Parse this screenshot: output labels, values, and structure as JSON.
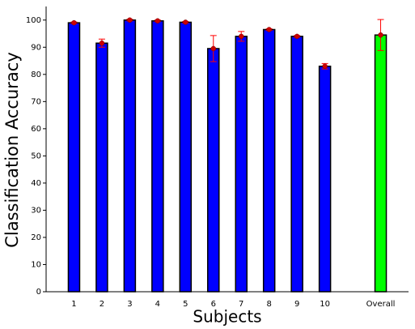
{
  "chart_data": {
    "type": "bar",
    "x_label": "Subjects",
    "y_label": "Classification Accuracy",
    "categories": [
      "1",
      "2",
      "3",
      "4",
      "5",
      "6",
      "7",
      "8",
      "9",
      "10",
      null,
      "Overall"
    ],
    "values": [
      99,
      91.5,
      100,
      99.7,
      99.2,
      89.5,
      94,
      96.5,
      94,
      83,
      null,
      94.5
    ],
    "errors": [
      0.3,
      1.5,
      0.3,
      0.3,
      0.3,
      4.8,
      1.8,
      0.3,
      0.3,
      1,
      null,
      5.7
    ],
    "colors": [
      "#0000ff",
      "#0000ff",
      "#0000ff",
      "#0000ff",
      "#0000ff",
      "#0000ff",
      "#0000ff",
      "#0000ff",
      "#0000ff",
      "#0000ff",
      null,
      "#00ff00"
    ],
    "error_color": "#ff0000",
    "ylim": [
      0,
      105
    ],
    "yticks": [
      0,
      10,
      20,
      30,
      40,
      50,
      60,
      70,
      80,
      90,
      100
    ],
    "grid": false
  }
}
